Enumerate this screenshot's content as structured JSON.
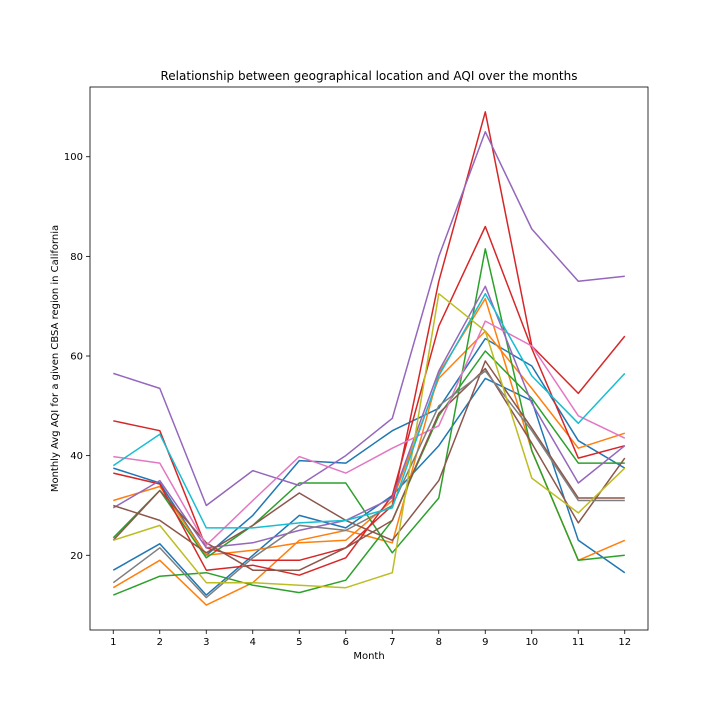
{
  "chart_data": {
    "type": "line",
    "title": "Relationship between geographical location and AQI over the months",
    "xlabel": "Month",
    "ylabel": "Monthly Avg AQI for a given CBSA region in California",
    "x": [
      1,
      2,
      3,
      4,
      5,
      6,
      7,
      8,
      9,
      10,
      11,
      12
    ],
    "xlim": [
      0.5,
      12.5
    ],
    "ylim": [
      5,
      114
    ],
    "yticks": [
      20,
      40,
      60,
      80,
      100
    ],
    "grid": false,
    "legend": "none",
    "series": [
      {
        "color": "#1f77b4",
        "values": [
          37.5,
          34.5,
          20.0,
          28.0,
          39.0,
          38.5,
          45.0,
          49.5,
          63.5,
          58.0,
          43.0,
          37.5
        ]
      },
      {
        "color": "#1f77b4",
        "values": [
          17.0,
          22.3,
          12.0,
          20.0,
          28.0,
          25.5,
          32.0,
          42.0,
          55.5,
          51.0,
          23.0,
          16.5
        ]
      },
      {
        "color": "#ff7f0e",
        "values": [
          31.0,
          33.8,
          20.0,
          21.0,
          22.5,
          23.0,
          31.0,
          55.5,
          65.0,
          53.5,
          41.5,
          44.5
        ]
      },
      {
        "color": "#ff7f0e",
        "values": [
          13.5,
          19.0,
          10.0,
          14.5,
          23.0,
          25.0,
          22.5,
          56.5,
          71.5,
          41.0,
          19.0,
          23.0
        ]
      },
      {
        "color": "#2ca02c",
        "values": [
          23.5,
          33.0,
          19.5,
          26.0,
          34.5,
          34.5,
          20.5,
          31.5,
          81.5,
          41.0,
          19.0,
          20.0
        ]
      },
      {
        "color": "#2ca02c",
        "values": [
          12.0,
          15.8,
          16.5,
          14.0,
          12.5,
          15.0,
          27.0,
          48.0,
          61.0,
          51.5,
          38.5,
          38.5
        ]
      },
      {
        "color": "#d62728",
        "values": [
          47.0,
          45.0,
          21.5,
          19.0,
          19.0,
          21.5,
          30.0,
          75.0,
          109.0,
          62.0,
          52.5,
          64.0
        ]
      },
      {
        "color": "#d62728",
        "values": [
          36.5,
          34.3,
          17.0,
          18.0,
          16.0,
          19.5,
          32.0,
          66.0,
          86.0,
          61.5,
          39.5,
          42.0
        ]
      },
      {
        "color": "#9467bd",
        "values": [
          56.5,
          53.5,
          30.0,
          37.0,
          34.0,
          40.0,
          47.5,
          80.0,
          105.0,
          85.5,
          75.0,
          76.0
        ]
      },
      {
        "color": "#9467bd",
        "values": [
          29.5,
          35.0,
          21.5,
          22.5,
          25.0,
          27.0,
          31.5,
          57.0,
          74.0,
          50.5,
          34.5,
          42.0
        ]
      },
      {
        "color": "#8c564b",
        "values": [
          30.0,
          27.0,
          20.5,
          26.0,
          32.5,
          27.0,
          23.0,
          35.0,
          59.0,
          45.5,
          31.5,
          31.5
        ]
      },
      {
        "color": "#8c564b",
        "values": [
          23.0,
          33.0,
          22.5,
          17.0,
          17.0,
          21.5,
          27.0,
          48.5,
          57.5,
          42.5,
          26.5,
          39.5
        ]
      },
      {
        "color": "#e377c2",
        "values": [
          39.8,
          38.5,
          22.0,
          31.0,
          39.8,
          36.5,
          41.5,
          46.0,
          67.0,
          62.0,
          48.0,
          43.5
        ]
      },
      {
        "color": "#7f7f7f",
        "values": [
          14.5,
          21.5,
          11.5,
          19.5,
          26.0,
          25.0,
          30.0,
          50.0,
          57.0,
          45.0,
          31.0,
          31.0
        ]
      },
      {
        "color": "#bcbd22",
        "values": [
          23.0,
          26.0,
          14.5,
          14.5,
          14.0,
          13.5,
          16.5,
          72.5,
          65.0,
          35.5,
          28.5,
          37.5
        ]
      },
      {
        "color": "#17becf",
        "values": [
          38.0,
          44.3,
          25.5,
          25.5,
          26.5,
          27.0,
          29.5,
          56.0,
          72.5,
          56.0,
          46.5,
          56.5
        ]
      }
    ]
  }
}
